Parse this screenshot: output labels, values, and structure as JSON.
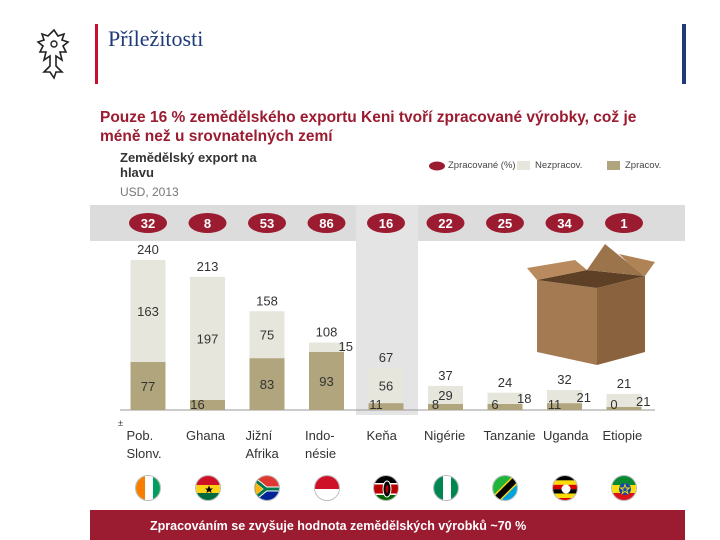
{
  "header": {
    "title": "Příležitosti"
  },
  "slide": {
    "headline": "Pouze 16 % zemědělského exportu Keni tvoří zpracované výrobky, což je méně než u srovnatelných zemí",
    "subtitle": "Zemědělský export na hlavu",
    "unit": "USD, 2013",
    "legend": {
      "share_label": "Zpracované (%)",
      "unprocessed_label": "Nezpracov.",
      "processed_label": "Zpracov."
    },
    "footnote": "±",
    "bottom_text": "Zpracováním se zvyšuje hodnota zemědělských výrobků ~70 %"
  },
  "colors": {
    "accent": "#9b1b30",
    "unprocessed": "#e6e6dc",
    "processed": "#b0a57c",
    "highlight_column": "#e4e4e4"
  },
  "chart_data": {
    "type": "bar",
    "stacked": true,
    "categories": [
      "Pob. Slonv.",
      "Ghana",
      "Jižní Afrika",
      "Indo-nésie",
      "Keňa",
      "Nigérie",
      "Tanzanie",
      "Uganda",
      "Etiopie"
    ],
    "category_lines": [
      [
        "Pob.",
        "Slonv."
      ],
      [
        "Ghana"
      ],
      [
        "Jižní",
        "Afrika"
      ],
      [
        "Indo-",
        "nésie"
      ],
      [
        "Keňa"
      ],
      [
        "Nigérie"
      ],
      [
        "Tanzanie"
      ],
      [
        "Uganda"
      ],
      [
        "Etiopie"
      ]
    ],
    "processed_share_pct": [
      "32",
      "8",
      "53",
      "86",
      "16",
      "22",
      "25",
      "34",
      "1"
    ],
    "totals": [
      "240",
      "213",
      "158",
      "108",
      "67",
      "37",
      "24",
      "32",
      "21"
    ],
    "series": [
      {
        "name": "Zpracov.",
        "values": [
          "77",
          "16",
          "83",
          "93",
          "11",
          "8",
          "6",
          "11",
          "0"
        ]
      },
      {
        "name": "Nezpracov.",
        "values": [
          "163",
          "197",
          "75",
          "15",
          "56",
          "29",
          "18",
          "21",
          "21"
        ]
      }
    ],
    "ylim": [
      0,
      240
    ],
    "highlight": "Keňa",
    "flag_icons": [
      "ivory-coast-flag-icon",
      "ghana-flag-icon",
      "south-africa-flag-icon",
      "indonesia-flag-icon",
      "kenya-flag-icon",
      "nigeria-flag-icon",
      "tanzania-flag-icon",
      "uganda-flag-icon",
      "ethiopia-flag-icon"
    ]
  }
}
